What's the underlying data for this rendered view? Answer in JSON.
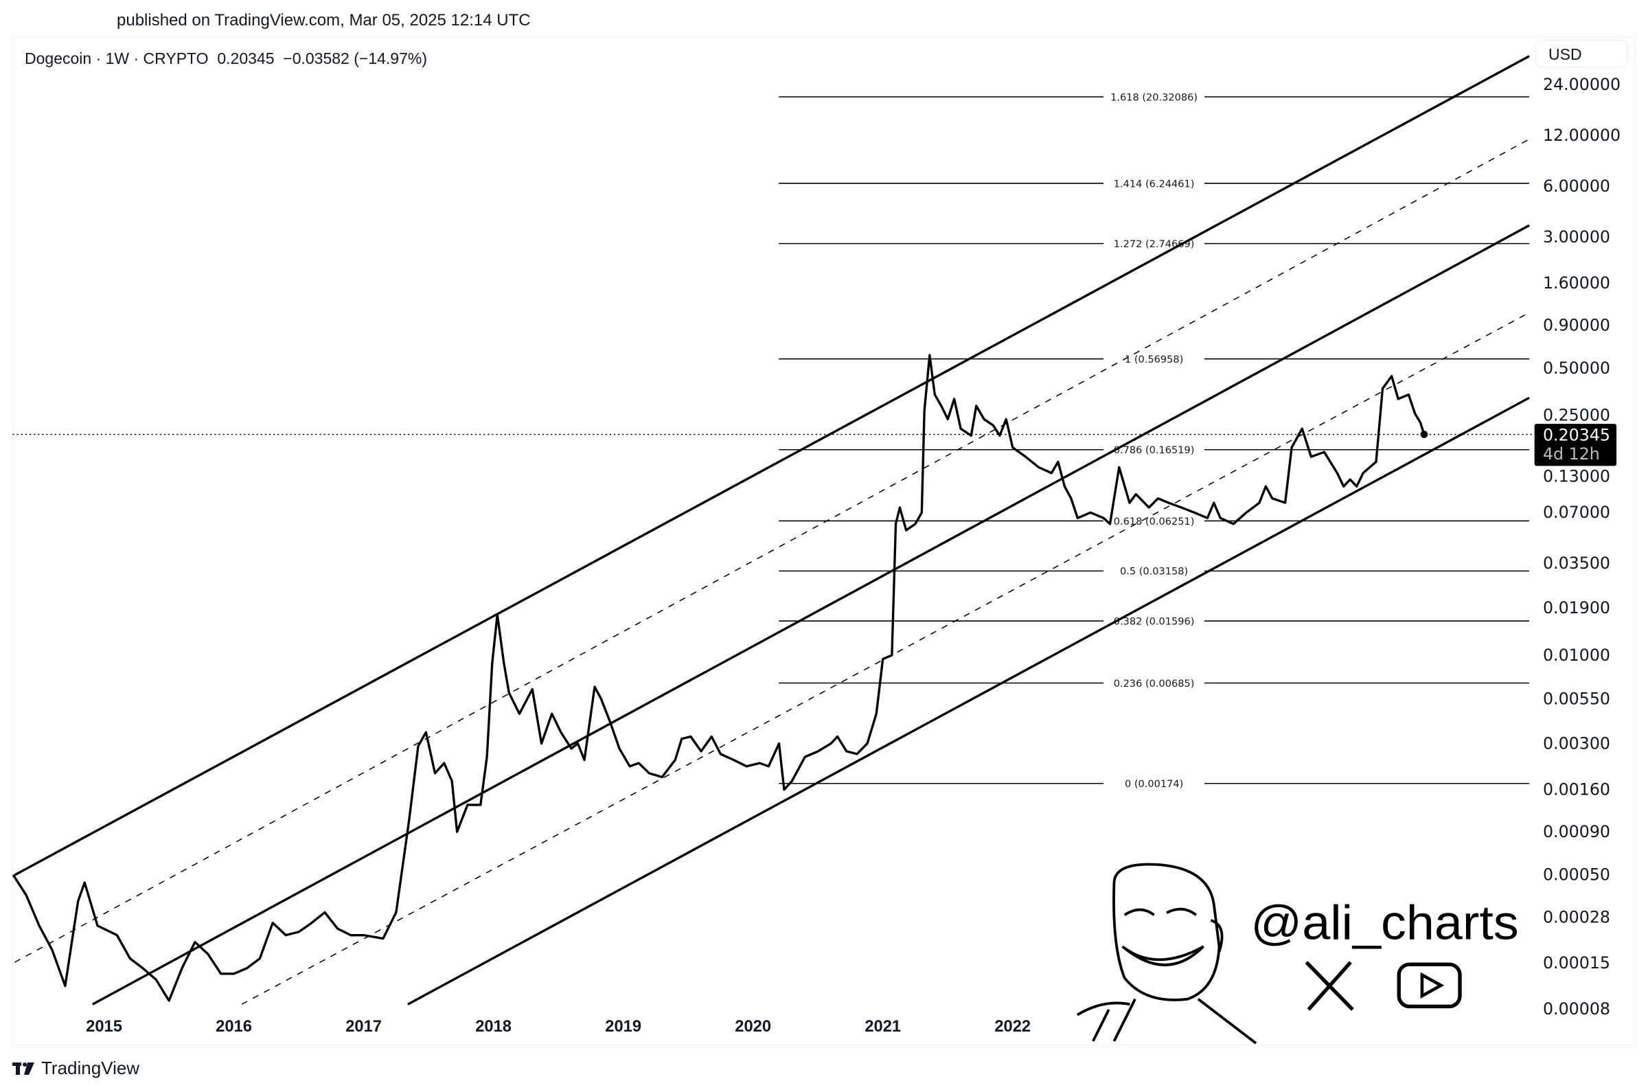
{
  "header": {
    "published": "published on TradingView.com, Mar 05, 2025 12:14 UTC"
  },
  "legend": {
    "symbol": "Dogecoin · 1W · CRYPTO",
    "price": "0.20345",
    "change": "−0.03582 (−14.97%)"
  },
  "currency_button": "USD",
  "last_price_label": {
    "price": "0.20345",
    "countdown": "4d 12h"
  },
  "watermark": {
    "handle": "@ali_charts",
    "icons": [
      "x-logo-icon",
      "youtube-icon",
      "trollface-avatar"
    ]
  },
  "footer": {
    "brand": "TradingView"
  },
  "chart_data": {
    "type": "line",
    "title": "",
    "scale": "log",
    "xlabel": "",
    "ylabel": "",
    "grid": false,
    "x_ticks": [
      "2015",
      "2016",
      "2017",
      "2018",
      "2019",
      "2020",
      "2021",
      "2022"
    ],
    "y_ticks": [
      "24.00000",
      "12.00000",
      "6.00000",
      "3.00000",
      "1.60000",
      "0.90000",
      "0.50000",
      "0.25000",
      "0.13000",
      "0.07000",
      "0.03500",
      "0.01900",
      "0.01000",
      "0.00550",
      "0.00300",
      "0.00160",
      "0.00090",
      "0.00050",
      "0.00028",
      "0.00015",
      "0.00008"
    ],
    "ylim": [
      7e-05,
      30
    ],
    "xlim": [
      2014.3,
      2026.0
    ],
    "line_color": "#000000",
    "fib_levels": [
      {
        "label": "1.618 (20.32086)",
        "price": 20.32086
      },
      {
        "label": "1.414 (6.24461)",
        "price": 6.24461
      },
      {
        "label": "1.272 (2.74669)",
        "price": 2.74669
      },
      {
        "label": "1 (0.56958)",
        "price": 0.56958
      },
      {
        "label": "0.786 (0.16519)",
        "price": 0.16519
      },
      {
        "label": "0.618 (0.06251)",
        "price": 0.06251
      },
      {
        "label": "0.5 (0.03158)",
        "price": 0.03158
      },
      {
        "label": "0.382 (0.01596)",
        "price": 0.01596
      },
      {
        "label": "0.236 (0.00685)",
        "price": 0.00685
      },
      {
        "label": "0 (0.00174)",
        "price": 0.00174
      }
    ],
    "last_price": 0.20345,
    "series": [
      {
        "points": [
          [
            2014.3,
            0.0005
          ],
          [
            2014.4,
            0.00038
          ],
          [
            2014.5,
            0.00025
          ],
          [
            2014.6,
            0.00018
          ],
          [
            2014.7,
            0.00011
          ],
          [
            2014.8,
            0.00035
          ],
          [
            2014.85,
            0.00045
          ],
          [
            2014.95,
            0.00025
          ],
          [
            2015.1,
            0.00022
          ],
          [
            2015.2,
            0.00016
          ],
          [
            2015.3,
            0.00014
          ],
          [
            2015.4,
            0.00012
          ],
          [
            2015.5,
            9e-05
          ],
          [
            2015.6,
            0.00014
          ],
          [
            2015.7,
            0.0002
          ],
          [
            2015.8,
            0.00017
          ],
          [
            2015.9,
            0.00013
          ],
          [
            2016.0,
            0.00013
          ],
          [
            2016.1,
            0.00014
          ],
          [
            2016.2,
            0.00016
          ],
          [
            2016.3,
            0.00026
          ],
          [
            2016.4,
            0.00022
          ],
          [
            2016.5,
            0.00023
          ],
          [
            2016.6,
            0.00026
          ],
          [
            2016.7,
            0.0003
          ],
          [
            2016.8,
            0.00024
          ],
          [
            2016.9,
            0.00022
          ],
          [
            2017.0,
            0.00022
          ],
          [
            2017.15,
            0.00021
          ],
          [
            2017.25,
            0.0003
          ],
          [
            2017.35,
            0.00105
          ],
          [
            2017.42,
            0.0029
          ],
          [
            2017.48,
            0.0035
          ],
          [
            2017.55,
            0.002
          ],
          [
            2017.62,
            0.0023
          ],
          [
            2017.68,
            0.0018
          ],
          [
            2017.72,
            0.0009
          ],
          [
            2017.8,
            0.0013
          ],
          [
            2017.9,
            0.0013
          ],
          [
            2017.95,
            0.0025
          ],
          [
            2017.99,
            0.009
          ],
          [
            2018.03,
            0.0174
          ],
          [
            2018.08,
            0.009
          ],
          [
            2018.12,
            0.006
          ],
          [
            2018.2,
            0.0045
          ],
          [
            2018.3,
            0.0063
          ],
          [
            2018.37,
            0.003
          ],
          [
            2018.45,
            0.0045
          ],
          [
            2018.52,
            0.0035
          ],
          [
            2018.6,
            0.0028
          ],
          [
            2018.65,
            0.003
          ],
          [
            2018.7,
            0.0024
          ],
          [
            2018.78,
            0.0065
          ],
          [
            2018.83,
            0.0055
          ],
          [
            2018.9,
            0.004
          ],
          [
            2018.97,
            0.0028
          ],
          [
            2019.05,
            0.0022
          ],
          [
            2019.12,
            0.0023
          ],
          [
            2019.2,
            0.002
          ],
          [
            2019.3,
            0.0019
          ],
          [
            2019.4,
            0.0024
          ],
          [
            2019.45,
            0.0032
          ],
          [
            2019.52,
            0.0033
          ],
          [
            2019.6,
            0.0027
          ],
          [
            2019.68,
            0.0033
          ],
          [
            2019.75,
            0.0026
          ],
          [
            2019.85,
            0.0024
          ],
          [
            2019.95,
            0.0022
          ],
          [
            2020.05,
            0.0023
          ],
          [
            2020.12,
            0.0022
          ],
          [
            2020.2,
            0.003
          ],
          [
            2020.24,
            0.0016
          ],
          [
            2020.3,
            0.0018
          ],
          [
            2020.4,
            0.0025
          ],
          [
            2020.5,
            0.0027
          ],
          [
            2020.6,
            0.003
          ],
          [
            2020.65,
            0.0033
          ],
          [
            2020.72,
            0.0027
          ],
          [
            2020.8,
            0.0026
          ],
          [
            2020.88,
            0.003
          ],
          [
            2020.95,
            0.0045
          ],
          [
            2021.0,
            0.0095
          ],
          [
            2021.07,
            0.01
          ],
          [
            2021.1,
            0.06
          ],
          [
            2021.13,
            0.075
          ],
          [
            2021.18,
            0.055
          ],
          [
            2021.25,
            0.06
          ],
          [
            2021.3,
            0.07
          ],
          [
            2021.32,
            0.28
          ],
          [
            2021.36,
            0.6
          ],
          [
            2021.4,
            0.35
          ],
          [
            2021.45,
            0.3
          ],
          [
            2021.5,
            0.25
          ],
          [
            2021.55,
            0.33
          ],
          [
            2021.6,
            0.22
          ],
          [
            2021.68,
            0.2
          ],
          [
            2021.72,
            0.3
          ],
          [
            2021.78,
            0.25
          ],
          [
            2021.85,
            0.23
          ],
          [
            2021.9,
            0.2
          ],
          [
            2021.95,
            0.25
          ],
          [
            2022.0,
            0.17
          ],
          [
            2022.1,
            0.15
          ],
          [
            2022.2,
            0.13
          ],
          [
            2022.3,
            0.12
          ],
          [
            2022.35,
            0.14
          ],
          [
            2022.4,
            0.1
          ],
          [
            2022.45,
            0.085
          ],
          [
            2022.5,
            0.065
          ],
          [
            2022.6,
            0.07
          ],
          [
            2022.7,
            0.065
          ],
          [
            2022.75,
            0.06
          ],
          [
            2022.82,
            0.13
          ],
          [
            2022.9,
            0.08
          ],
          [
            2022.95,
            0.09
          ],
          [
            2023.05,
            0.075
          ],
          [
            2023.12,
            0.085
          ],
          [
            2023.2,
            0.08
          ],
          [
            2023.3,
            0.075
          ],
          [
            2023.4,
            0.07
          ],
          [
            2023.5,
            0.065
          ],
          [
            2023.55,
            0.08
          ],
          [
            2023.6,
            0.065
          ],
          [
            2023.7,
            0.06
          ],
          [
            2023.8,
            0.07
          ],
          [
            2023.9,
            0.08
          ],
          [
            2023.95,
            0.1
          ],
          [
            2024.0,
            0.085
          ],
          [
            2024.1,
            0.08
          ],
          [
            2024.15,
            0.17
          ],
          [
            2024.2,
            0.2
          ],
          [
            2024.23,
            0.22
          ],
          [
            2024.3,
            0.15
          ],
          [
            2024.4,
            0.16
          ],
          [
            2024.5,
            0.12
          ],
          [
            2024.55,
            0.1
          ],
          [
            2024.6,
            0.11
          ],
          [
            2024.65,
            0.1
          ],
          [
            2024.7,
            0.12
          ],
          [
            2024.8,
            0.14
          ],
          [
            2024.85,
            0.38
          ],
          [
            2024.92,
            0.45
          ],
          [
            2024.97,
            0.33
          ],
          [
            2025.05,
            0.35
          ],
          [
            2025.1,
            0.27
          ],
          [
            2025.14,
            0.24
          ],
          [
            2025.17,
            0.20345
          ]
        ]
      }
    ]
  }
}
